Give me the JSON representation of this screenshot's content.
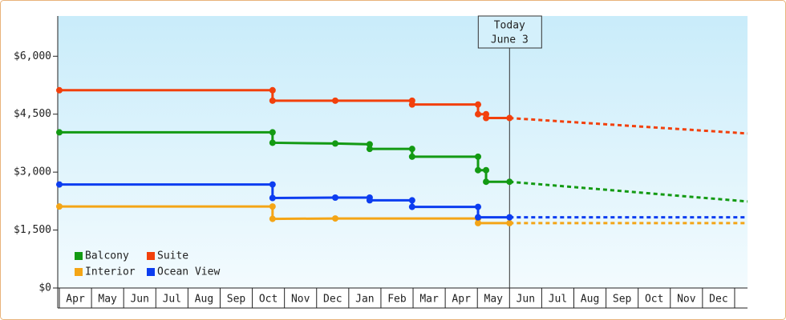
{
  "chart_data": {
    "type": "step-line",
    "categories": [
      "Apr",
      "May",
      "Jun",
      "Jul",
      "Aug",
      "Sep",
      "Oct",
      "Nov",
      "Dec",
      "Jan",
      "Feb",
      "Mar",
      "Apr",
      "May",
      "Jun",
      "Jul",
      "Aug",
      "Sep",
      "Oct",
      "Nov",
      "Dec"
    ],
    "xlim": [
      -0.05,
      21.4
    ],
    "ylim": [
      0,
      7000
    ],
    "yticks": [
      {
        "value": 0,
        "label": "$0"
      },
      {
        "value": 1500,
        "label": "$1,500"
      },
      {
        "value": 3000,
        "label": "$3,000"
      },
      {
        "value": 4500,
        "label": "$4,500"
      },
      {
        "value": 6000,
        "label": "$6,000"
      }
    ],
    "annotation": {
      "lines": [
        "Today",
        "June 3"
      ],
      "x": 14
    },
    "series": [
      {
        "name": "Balcony",
        "color": "#139a13",
        "x": [
          0,
          6.63,
          6.63,
          8.58,
          9.65,
          9.65,
          10.97,
          10.97,
          13.02,
          13.02,
          13.27,
          13.27,
          14
        ],
        "values": [
          4030,
          4030,
          3760,
          3740,
          3720,
          3600,
          3600,
          3400,
          3400,
          3050,
          3050,
          2750,
          2750
        ],
        "forecast": {
          "x": [
            14,
            21.4
          ],
          "values": [
            2750,
            2240
          ]
        }
      },
      {
        "name": "Suite",
        "color": "#f2400c",
        "x": [
          0,
          6.63,
          6.63,
          8.58,
          10.97,
          10.97,
          13.02,
          13.02,
          13.27,
          13.27,
          14
        ],
        "values": [
          5120,
          5120,
          4850,
          4850,
          4850,
          4750,
          4750,
          4500,
          4500,
          4400,
          4400
        ],
        "forecast": {
          "x": [
            14,
            21.4
          ],
          "values": [
            4400,
            4000
          ]
        }
      },
      {
        "name": "Interior",
        "color": "#f4a516",
        "x": [
          0,
          6.63,
          6.63,
          8.58,
          13.02,
          13.02,
          14
        ],
        "values": [
          2110,
          2110,
          1790,
          1800,
          1800,
          1680,
          1680
        ],
        "forecast": {
          "x": [
            14,
            21.4
          ],
          "values": [
            1680,
            1680
          ]
        }
      },
      {
        "name": "Ocean View",
        "color": "#0c3df0",
        "x": [
          0,
          6.63,
          6.63,
          8.58,
          9.65,
          9.65,
          10.97,
          10.97,
          13.02,
          13.02,
          14
        ],
        "values": [
          2680,
          2680,
          2330,
          2340,
          2340,
          2270,
          2270,
          2100,
          2100,
          1830,
          1830
        ],
        "forecast": {
          "x": [
            14,
            21.4
          ],
          "values": [
            1830,
            1830
          ]
        }
      }
    ]
  }
}
